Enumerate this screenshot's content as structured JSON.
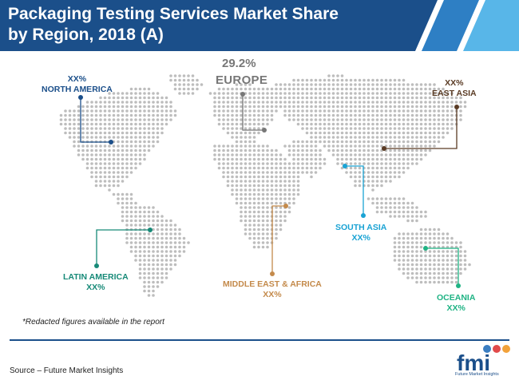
{
  "header": {
    "title_line1": "Packaging Testing Services Market Share",
    "title_line2": "by Region, 2018 (A)"
  },
  "regions": {
    "north_america": {
      "value": "XX%",
      "name": "NORTH AMERICA",
      "color": "#1b4f8a"
    },
    "europe": {
      "value": "29.2%",
      "name": "EUROPE",
      "color": "#777777"
    },
    "east_asia": {
      "value": "XX%",
      "name": "EAST ASIA",
      "color": "#5a3b24"
    },
    "south_asia": {
      "value": "XX%",
      "name": "SOUTH ASIA",
      "color": "#1aa3d4"
    },
    "latin_america": {
      "value": "XX%",
      "name": "LATIN AMERICA",
      "color": "#178a78"
    },
    "middle_east_africa": {
      "value": "XX%",
      "name": "MIDDLE EAST & AFRICA",
      "color": "#c48a4b"
    },
    "oceania": {
      "value": "XX%",
      "name": "OCEANIA",
      "color": "#1fb384"
    }
  },
  "footer": {
    "note": "*Redacted figures available in the report",
    "source": "Source – Future Market Insights",
    "logo_text": "fmi",
    "logo_tagline": "Future Market Insights"
  }
}
